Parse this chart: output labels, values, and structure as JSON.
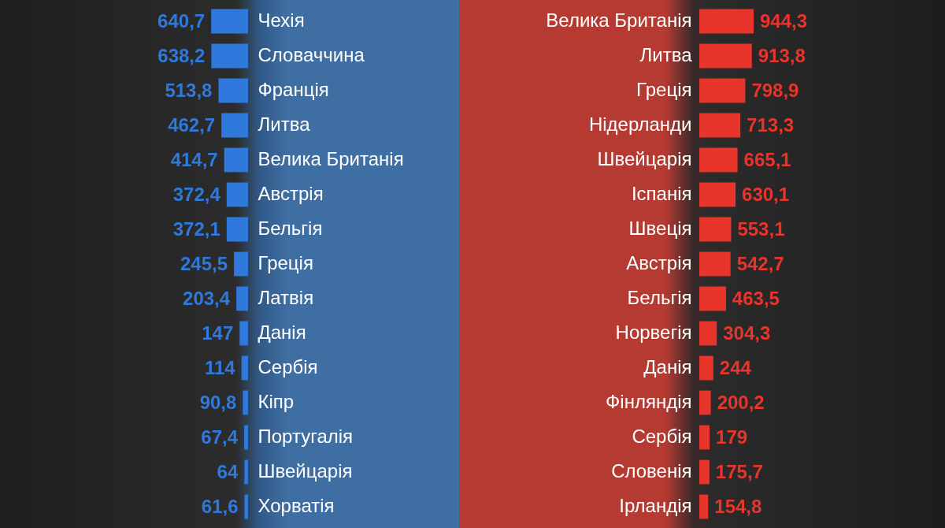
{
  "chart_data": [
    {
      "type": "bar",
      "orientation": "horizontal",
      "categories": [
        "Чехія",
        "Словаччина",
        "Франція",
        "Литва",
        "Велика Британія",
        "Австрія",
        "Бельгія",
        "Греція",
        "Латвія",
        "Данія",
        "Сербія",
        "Кіпр",
        "Португалія",
        "Швейцарія",
        "Хорватія"
      ],
      "values": [
        640.7,
        638.2,
        513.8,
        462.7,
        414.7,
        372.4,
        372.1,
        245.5,
        203.4,
        147,
        114,
        90.8,
        67.4,
        64,
        61.6
      ],
      "value_labels": [
        "640,7",
        "638,2",
        "513,8",
        "462,7",
        "414,7",
        "372,4",
        "372,1",
        "245,5",
        "203,4",
        "147",
        "114",
        "90,8",
        "67,4",
        "64",
        "61,6"
      ],
      "color": "#3079dc"
    },
    {
      "type": "bar",
      "orientation": "horizontal",
      "categories": [
        "Велика Британія",
        "Литва",
        "Греція",
        "Нідерланди",
        "Швейцарія",
        "Іспанія",
        "Швеція",
        "Австрія",
        "Бельгія",
        "Норвегія",
        "Данія",
        "Фінляндія",
        "Сербія",
        "Словенія",
        "Ірландія"
      ],
      "values": [
        944.3,
        913.8,
        798.9,
        713.3,
        665.1,
        630.1,
        553.1,
        542.7,
        463.5,
        304.3,
        244,
        200.2,
        179,
        175.7,
        154.8
      ],
      "value_labels": [
        "944,3",
        "913,8",
        "798,9",
        "713,3",
        "665,1",
        "630,1",
        "553,1",
        "542,7",
        "463,5",
        "304,3",
        "244",
        "200,2",
        "179",
        "175,7",
        "154,8"
      ],
      "color": "#e8352c"
    }
  ]
}
